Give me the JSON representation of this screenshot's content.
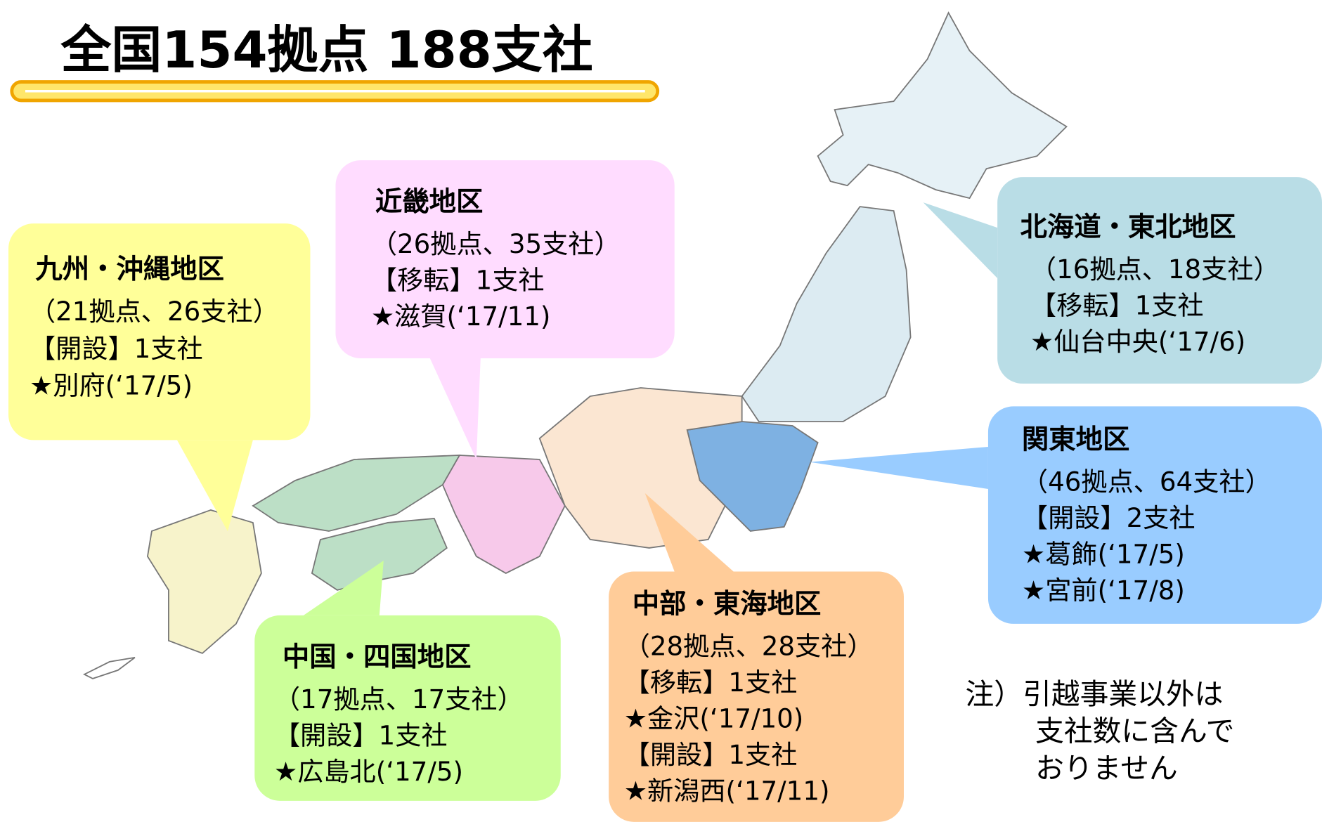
{
  "title": "全国154拠点 188支社",
  "regions": [
    {
      "name": "九州・沖縄地区",
      "lines": [
        "（21拠点、26支社）",
        "【開設】1支社",
        "★別府(‘17/5)"
      ]
    },
    {
      "name": "近畿地区",
      "lines": [
        "（26拠点、35支社）",
        "【移転】1支社",
        "★滋賀(‘17/11)"
      ]
    },
    {
      "name": "北海道・東北地区",
      "lines": [
        "（16拠点、18支社）",
        "【移転】1支社",
        "★仙台中央(‘17/6)"
      ]
    },
    {
      "name": "関東地区",
      "lines": [
        "（46拠点、64支社）",
        "【開設】2支社",
        "★葛飾(‘17/5)",
        "★宮前(‘17/8)"
      ]
    },
    {
      "name": "中部・東海地区",
      "lines": [
        "（28拠点、28支社）",
        "【移転】1支社",
        "★金沢(‘17/10)",
        "【開設】1支社",
        "★新潟西(‘17/11)"
      ]
    },
    {
      "name": "中国・四国地区",
      "lines": [
        "（17拠点、17支社）",
        "【開設】1支社",
        "★広島北(‘17/5)"
      ]
    }
  ],
  "note": [
    "注）引越事業以外は",
    "支社数に含んで",
    "おりません"
  ]
}
